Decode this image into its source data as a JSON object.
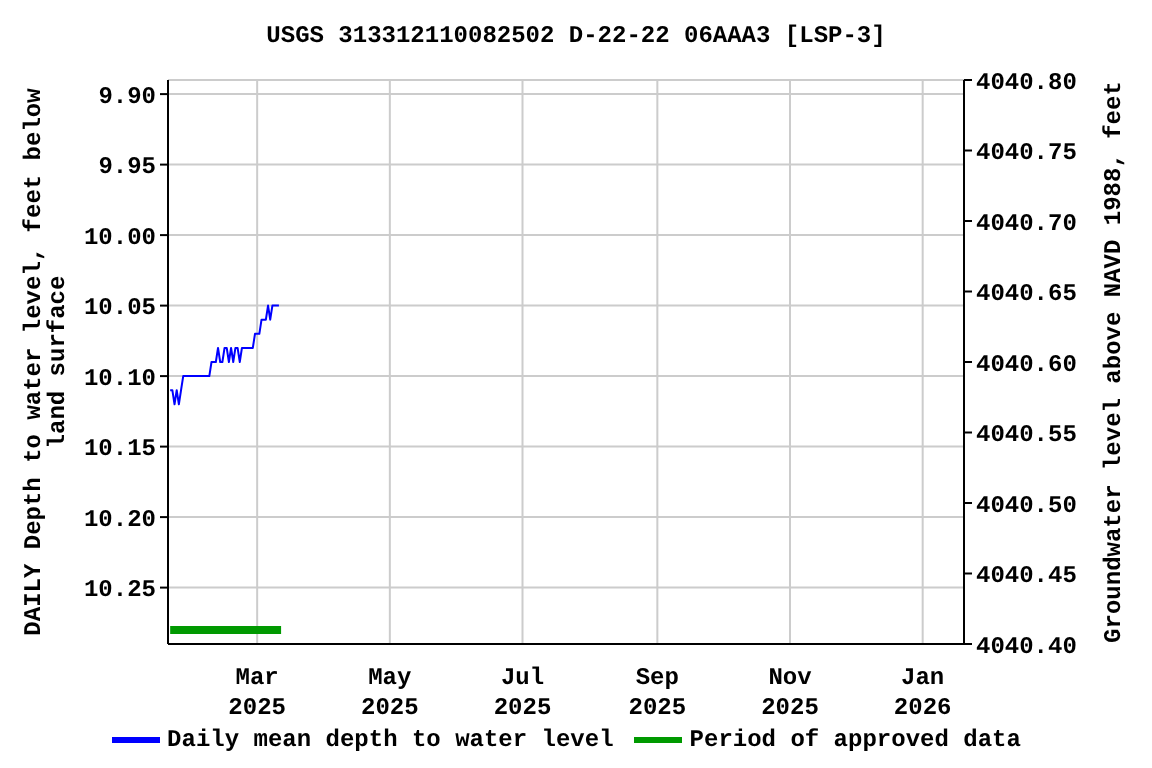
{
  "chart_data": {
    "type": "line",
    "title": "USGS 313312110082502 D-22-22 06AAA3 [LSP-3]",
    "ylabel": "DAILY Depth to water level, feet below land surface",
    "y2label": "Groundwater level above NAVD 1988, feet",
    "series": [
      {
        "name": "Daily mean depth to water level",
        "color": "#0000ff",
        "x": [
          "2025-01-20",
          "2025-01-21",
          "2025-01-22",
          "2025-01-23",
          "2025-01-24",
          "2025-01-25",
          "2025-01-26",
          "2025-02-07",
          "2025-02-08",
          "2025-02-10",
          "2025-02-11",
          "2025-02-12",
          "2025-02-13",
          "2025-02-14",
          "2025-02-15",
          "2025-02-16",
          "2025-02-17",
          "2025-02-18",
          "2025-02-19",
          "2025-02-20",
          "2025-02-21",
          "2025-02-22",
          "2025-02-27",
          "2025-02-28",
          "2025-03-02",
          "2025-03-03",
          "2025-03-05",
          "2025-03-06",
          "2025-03-07",
          "2025-03-08",
          "2025-03-11"
        ],
        "values": [
          10.11,
          10.11,
          10.12,
          10.11,
          10.12,
          10.11,
          10.1,
          10.1,
          10.09,
          10.09,
          10.08,
          10.09,
          10.09,
          10.08,
          10.08,
          10.09,
          10.08,
          10.09,
          10.08,
          10.08,
          10.09,
          10.08,
          10.08,
          10.07,
          10.07,
          10.06,
          10.06,
          10.05,
          10.06,
          10.05,
          10.05
        ]
      },
      {
        "name": "Period of approved data",
        "color": "#009900",
        "x": [
          "2025-01-20",
          "2025-03-12"
        ],
        "values": [
          10.28,
          10.28
        ]
      }
    ],
    "xlim": [
      "2025-01-19",
      "2026-01-20"
    ],
    "xticks": [
      {
        "value": "2025-03-01",
        "label": "Mar 2025"
      },
      {
        "value": "2025-05-01",
        "label": "May 2025"
      },
      {
        "value": "2025-07-01",
        "label": "Jul 2025"
      },
      {
        "value": "2025-09-01",
        "label": "Sep 2025"
      },
      {
        "value": "2025-11-01",
        "label": "Nov 2025"
      },
      {
        "value": "2026-01-01",
        "label": "Jan 2026"
      }
    ],
    "ylim": [
      10.29,
      9.89
    ],
    "yticks": [
      {
        "value": 9.9,
        "label": "9.90"
      },
      9.95,
      {
        "value": 10.0,
        "label": "10.00"
      },
      10.05,
      {
        "value": 10.1,
        "label": "10.10"
      },
      10.15,
      {
        "value": 10.2,
        "label": "10.20"
      },
      10.25
    ],
    "y2lim": [
      4040.4,
      4040.8
    ],
    "y2ticks": [
      {
        "value": 4040.4,
        "label": "4040.40"
      },
      {
        "value": 4040.45,
        "label": "4040.45"
      },
      {
        "value": 4040.5,
        "label": "4040.50"
      },
      {
        "value": 4040.55,
        "label": "4040.55"
      },
      {
        "value": 4040.6,
        "label": "4040.60"
      },
      {
        "value": 4040.65,
        "label": "4040.65"
      },
      {
        "value": 4040.7,
        "label": "4040.70"
      },
      {
        "value": 4040.75,
        "label": "4040.75"
      },
      {
        "value": 4040.8,
        "label": "4040.80"
      }
    ],
    "grid": true,
    "legend": "bottom",
    "marker": "none",
    "line_style": "solid"
  }
}
